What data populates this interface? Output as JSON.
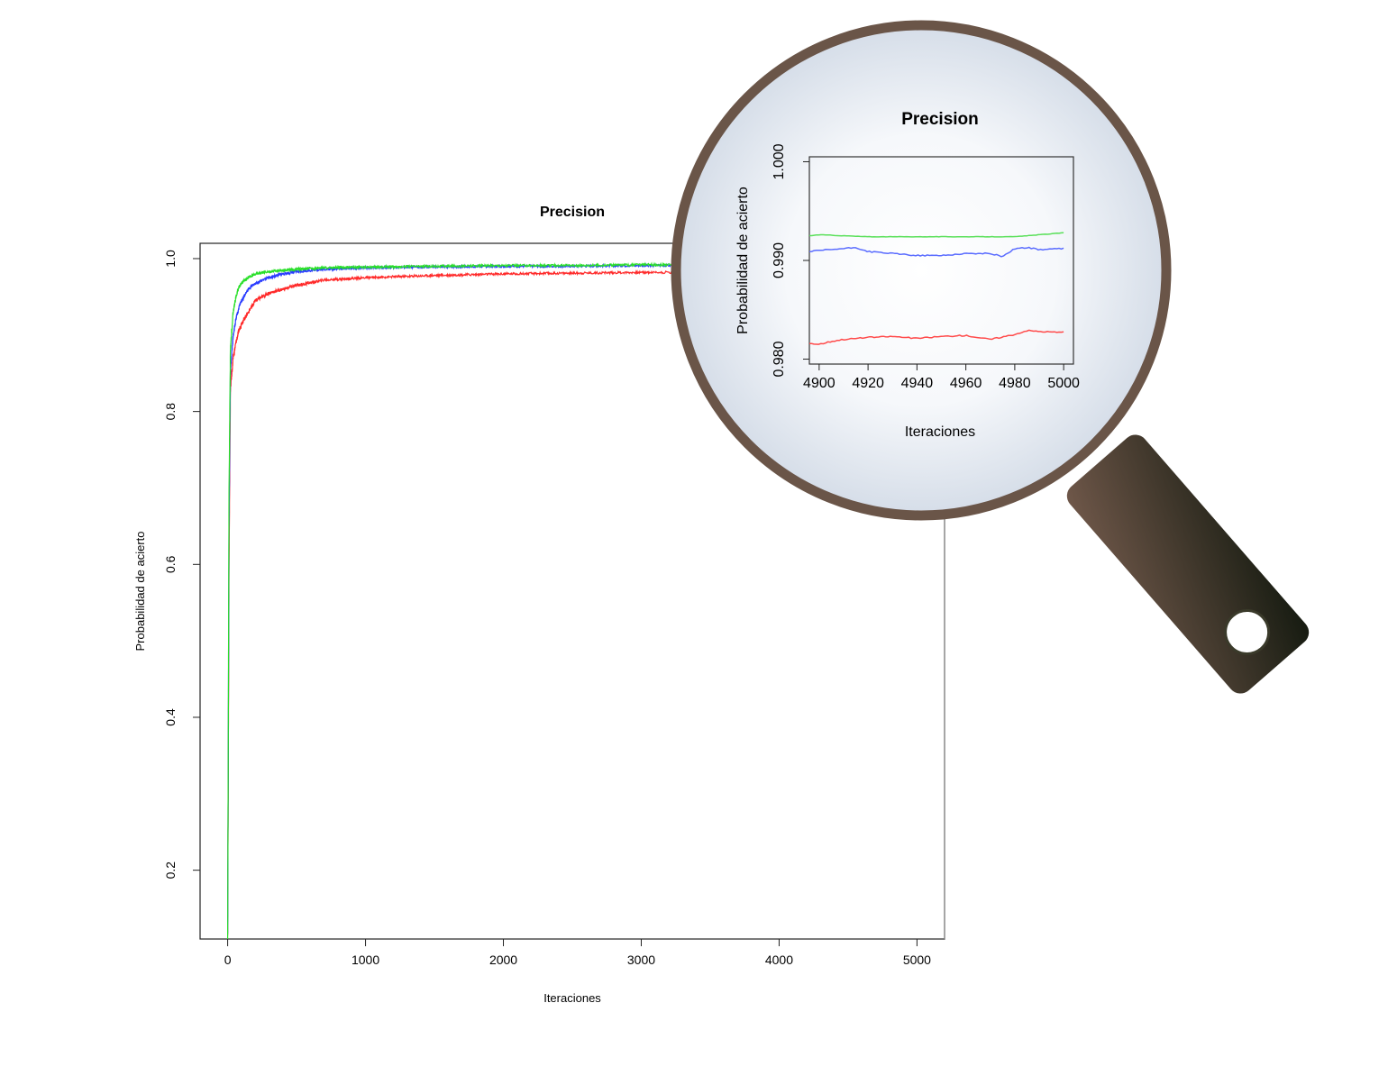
{
  "chart_data": [
    {
      "type": "line",
      "title": "Precision",
      "xlabel": "Iteraciones",
      "ylabel": "Probabilidad de acierto",
      "xlim": [
        -200,
        5200
      ],
      "ylim": [
        0.11,
        1.02
      ],
      "x_ticks": [
        0,
        1000,
        2000,
        3000,
        4000,
        5000
      ],
      "y_ticks": [
        0.2,
        0.4,
        0.6,
        0.8,
        1.0
      ],
      "x_tick_labels": [
        "0",
        "1000",
        "2000",
        "3000",
        "4000",
        "5000"
      ],
      "y_tick_labels": [
        "0.2",
        "0.4",
        "0.6",
        "0.8",
        "1.0"
      ],
      "grid": false,
      "legend": "none",
      "series": [
        {
          "color": "#ff2a2a",
          "x": [
            0,
            10,
            20,
            40,
            60,
            80,
            100,
            150,
            200,
            300,
            400,
            500,
            700,
            1000,
            1500,
            2000,
            2500,
            3000,
            3500,
            3640
          ],
          "values": [
            0.12,
            0.6,
            0.83,
            0.87,
            0.89,
            0.905,
            0.915,
            0.93,
            0.945,
            0.955,
            0.96,
            0.965,
            0.972,
            0.975,
            0.978,
            0.98,
            0.981,
            0.982,
            0.982,
            0.982
          ]
        },
        {
          "color": "#2a3cff",
          "x": [
            0,
            10,
            20,
            40,
            60,
            80,
            100,
            150,
            200,
            300,
            400,
            500,
            700,
            1000,
            1500,
            2000,
            2500,
            3000,
            3500,
            3640
          ],
          "values": [
            0.12,
            0.65,
            0.85,
            0.9,
            0.92,
            0.935,
            0.945,
            0.96,
            0.968,
            0.975,
            0.98,
            0.983,
            0.986,
            0.988,
            0.989,
            0.99,
            0.99,
            0.991,
            0.991,
            0.991
          ]
        },
        {
          "color": "#2adf2a",
          "x": [
            0,
            10,
            20,
            40,
            60,
            80,
            100,
            150,
            200,
            300,
            400,
            500,
            700,
            1000,
            1500,
            2000,
            2500,
            3000,
            3500,
            3640
          ],
          "values": [
            0.11,
            0.7,
            0.88,
            0.93,
            0.95,
            0.962,
            0.968,
            0.975,
            0.98,
            0.983,
            0.985,
            0.986,
            0.988,
            0.989,
            0.99,
            0.991,
            0.991,
            0.992,
            0.992,
            0.992
          ]
        }
      ]
    },
    {
      "type": "line",
      "title": "Precision",
      "xlabel": "Iteraciones",
      "ylabel": "Probabilidad de acierto",
      "xlim": [
        4896,
        5004
      ],
      "ylim": [
        0.9795,
        1.0005
      ],
      "x_ticks": [
        4900,
        4920,
        4940,
        4960,
        4980,
        5000
      ],
      "y_ticks": [
        0.98,
        0.99,
        1.0
      ],
      "x_tick_labels": [
        "4900",
        "4920",
        "4940",
        "4960",
        "4980",
        "5000"
      ],
      "y_tick_labels": [
        "0.980",
        "0.990",
        "1.000"
      ],
      "grid": false,
      "legend": "none",
      "series": [
        {
          "color": "#ff4a4a",
          "x": [
            4896,
            4900,
            4905,
            4910,
            4920,
            4930,
            4940,
            4950,
            4960,
            4970,
            4980,
            4985,
            4990,
            5000
          ],
          "values": [
            0.9816,
            0.9815,
            0.9818,
            0.982,
            0.9822,
            0.9823,
            0.9821,
            0.9823,
            0.9824,
            0.982,
            0.9825,
            0.9829,
            0.9828,
            0.9827
          ]
        },
        {
          "color": "#5a6cff",
          "x": [
            4896,
            4900,
            4905,
            4910,
            4915,
            4920,
            4930,
            4940,
            4950,
            4960,
            4970,
            4975,
            4980,
            4985,
            4990,
            5000
          ],
          "values": [
            0.9909,
            0.991,
            0.9911,
            0.9912,
            0.9913,
            0.9909,
            0.9907,
            0.9905,
            0.9905,
            0.9907,
            0.9907,
            0.9904,
            0.9912,
            0.9913,
            0.9911,
            0.9912
          ]
        },
        {
          "color": "#5ae05a",
          "x": [
            4896,
            4900,
            4920,
            4940,
            4960,
            4980,
            4990,
            5000
          ],
          "values": [
            0.9925,
            0.9926,
            0.9924,
            0.9924,
            0.9924,
            0.9924,
            0.9926,
            0.9928
          ]
        }
      ]
    }
  ],
  "colors": {
    "lens_rim": "#6a5548",
    "handle_top": "#70584a",
    "handle_bottom": "#151a10",
    "axis": "#222222",
    "pointer_line": "#888888"
  },
  "icons": [
    "magnifier-icon"
  ]
}
